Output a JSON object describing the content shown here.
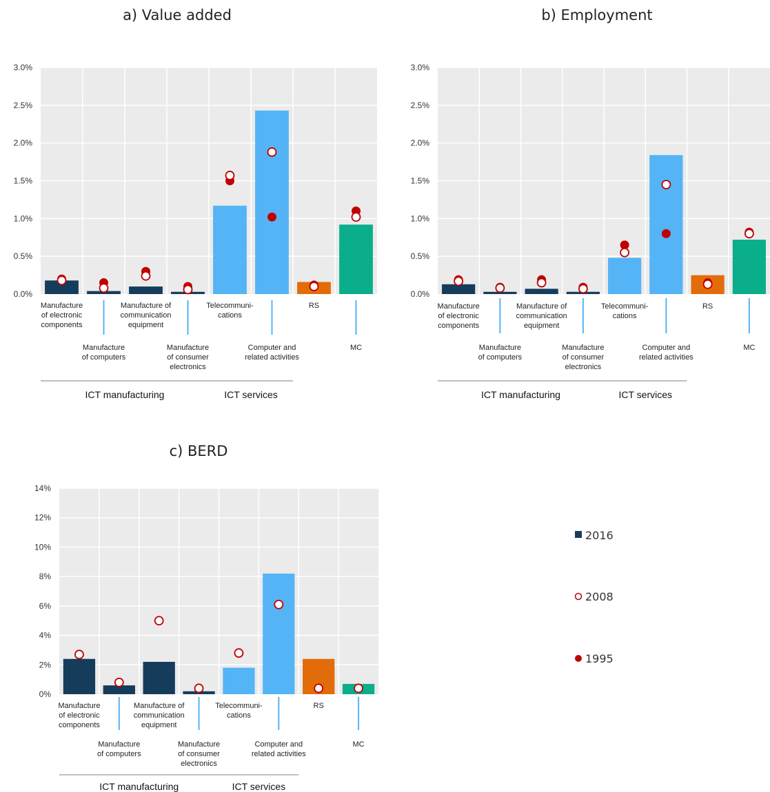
{
  "colors": {
    "ict_manufacturing": "#163c5c",
    "ict_services": "#55b4f5",
    "rs": "#e36c0a",
    "mc": "#0aae8a",
    "marker": "#c00000",
    "plot_bg": "#ebebeb",
    "grid": "#ffffff"
  },
  "legend": [
    {
      "label": "2016",
      "symbol": "square"
    },
    {
      "label": "2008",
      "symbol": "open-circle"
    },
    {
      "label": "1995",
      "symbol": "filled-circle"
    }
  ],
  "chart_data": [
    {
      "type": "bar",
      "title": "a) Value added",
      "ylim": [
        0,
        0.03
      ],
      "yticks": [
        0,
        0.005,
        0.01,
        0.015,
        0.02,
        0.025,
        0.03
      ],
      "ytick_labels": [
        "0.0%",
        "0.5%",
        "1.0%",
        "1.5%",
        "2.0%",
        "2.5%",
        "3.0%"
      ],
      "categories": [
        [
          "Manufacture",
          "of electronic",
          "components"
        ],
        [
          "Manufacture",
          "of computers"
        ],
        [
          "Manufacture of",
          "communication",
          "equipment"
        ],
        [
          "Manufacture",
          "of consumer",
          "electronics"
        ],
        [
          "Telecommuni-",
          "cations"
        ],
        [
          "Computer  and",
          "related activities"
        ],
        [
          "RS"
        ],
        [
          "MC"
        ]
      ],
      "groups": [
        {
          "label": "ICT manufacturing",
          "from": 0,
          "to": 3
        },
        {
          "label": "ICT services",
          "from": 4,
          "to": 5
        }
      ],
      "series": [
        {
          "name": "2016",
          "kind": "bar",
          "values": [
            0.0018,
            0.0004,
            0.001,
            0.0003,
            0.0117,
            0.0243,
            0.0016,
            0.0092
          ]
        },
        {
          "name": "1995",
          "kind": "filled-circle",
          "values": [
            0.002,
            0.0015,
            0.003,
            0.001,
            0.015,
            0.0102,
            0.0012,
            0.011
          ]
        },
        {
          "name": "2008",
          "kind": "open-circle",
          "values": [
            0.0018,
            0.0008,
            0.0024,
            0.0006,
            0.0157,
            0.0188,
            0.001,
            0.0102
          ]
        }
      ],
      "legend": "right",
      "grid": true
    },
    {
      "type": "bar",
      "title": "b) Employment",
      "ylim": [
        0,
        0.03
      ],
      "yticks": [
        0,
        0.005,
        0.01,
        0.015,
        0.02,
        0.025,
        0.03
      ],
      "ytick_labels": [
        "0.0%",
        "0.5%",
        "1.0%",
        "1.5%",
        "2.0%",
        "2.5%",
        "3.0%"
      ],
      "categories": [
        [
          "Manufacture",
          "of electronic",
          "components"
        ],
        [
          "Manufacture",
          "of computers"
        ],
        [
          "Manufacture of",
          "communication",
          "equipment"
        ],
        [
          "Manufacture",
          "of consumer",
          "electronics"
        ],
        [
          "Telecommuni-",
          "cations"
        ],
        [
          "Computer  and",
          "related activities"
        ],
        [
          "RS"
        ],
        [
          "MC"
        ]
      ],
      "groups": [
        {
          "label": "ICT manufacturing",
          "from": 0,
          "to": 3
        },
        {
          "label": "ICT services",
          "from": 4,
          "to": 5
        }
      ],
      "series": [
        {
          "name": "2016",
          "kind": "bar",
          "values": [
            0.0013,
            0.0003,
            0.0007,
            0.0003,
            0.0048,
            0.0184,
            0.0025,
            0.0072
          ]
        },
        {
          "name": "1995",
          "kind": "filled-circle",
          "values": [
            0.0019,
            0.0009,
            0.0019,
            0.0009,
            0.0065,
            0.008,
            0.0015,
            0.0082
          ]
        },
        {
          "name": "2008",
          "kind": "open-circle",
          "values": [
            0.0017,
            0.0008,
            0.0015,
            0.0007,
            0.0055,
            0.0145,
            0.0013,
            0.008
          ]
        }
      ],
      "legend": "right",
      "grid": true
    },
    {
      "type": "bar",
      "title": "c) BERD",
      "ylim": [
        0,
        0.14
      ],
      "yticks": [
        0,
        0.02,
        0.04,
        0.06,
        0.08,
        0.1,
        0.12,
        0.14
      ],
      "ytick_labels": [
        "0%",
        "2%",
        "4%",
        "6%",
        "8%",
        "10%",
        "12%",
        "14%"
      ],
      "categories": [
        [
          "Manufacture",
          "of electronic",
          "components"
        ],
        [
          "Manufacture",
          "of computers"
        ],
        [
          "Manufacture of",
          "communication",
          "equipment"
        ],
        [
          "Manufacture",
          "of consumer",
          "electronics"
        ],
        [
          "Telecommuni-",
          "cations"
        ],
        [
          "Computer  and",
          "related activities"
        ],
        [
          "RS"
        ],
        [
          "MC"
        ]
      ],
      "groups": [
        {
          "label": "ICT manufacturing",
          "from": 0,
          "to": 3
        },
        {
          "label": "ICT services",
          "from": 4,
          "to": 5
        }
      ],
      "series": [
        {
          "name": "2016",
          "kind": "bar",
          "values": [
            0.024,
            0.006,
            0.022,
            0.002,
            0.018,
            0.082,
            0.024,
            0.007
          ]
        },
        {
          "name": "2008",
          "kind": "open-circle",
          "values": [
            0.027,
            0.008,
            0.05,
            0.004,
            0.028,
            0.061,
            0.004,
            0.004
          ]
        }
      ],
      "legend": "right",
      "grid": true
    }
  ]
}
